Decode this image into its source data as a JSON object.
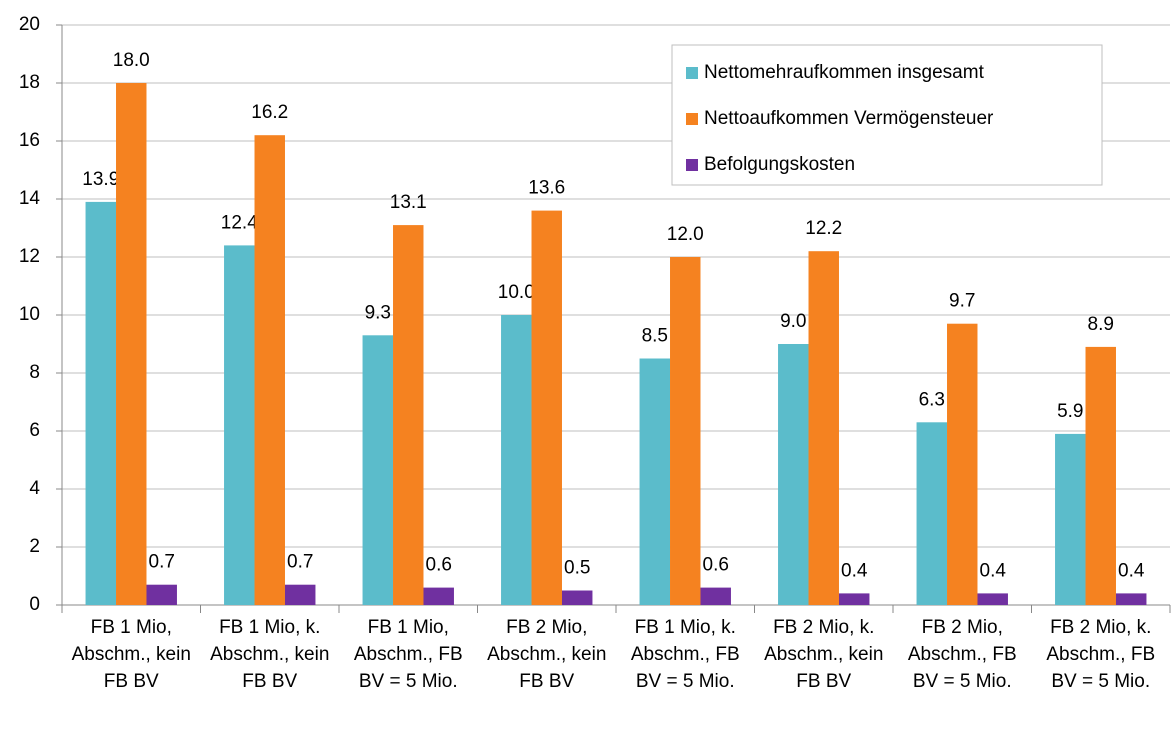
{
  "chart_data": {
    "type": "bar",
    "categories": [
      "FB 1 Mio, Abschm., kein FB BV",
      "FB 1 Mio, k. Abschm., kein FB BV",
      "FB 1 Mio, Abschm., FB BV = 5 Mio.",
      "FB 2 Mio, Abschm., kein FB BV",
      "FB 1 Mio, k. Abschm., FB BV = 5 Mio.",
      "FB 2 Mio, k. Abschm., kein FB BV",
      "FB 2 Mio, Abschm., FB BV = 5 Mio.",
      "FB 2 Mio, k. Abschm., FB BV = 5 Mio."
    ],
    "series": [
      {
        "name": "Nettomehraufkommen insgesamt",
        "color": "#5bbccb",
        "values": [
          13.9,
          12.4,
          9.3,
          10.0,
          8.5,
          9.0,
          6.3,
          5.9
        ],
        "value_labels": [
          "13.9",
          "12.4",
          "9.3",
          "10.0",
          "8.5",
          "9.0",
          "6.3",
          "5.9"
        ]
      },
      {
        "name": "Nettoaufkommen Vermögensteuer",
        "color": "#f58220",
        "values": [
          18.0,
          16.2,
          13.1,
          13.6,
          12.0,
          12.2,
          9.7,
          8.9
        ],
        "value_labels": [
          "18.0",
          "16.2",
          "13.1",
          "13.6",
          "12.0",
          "12.2",
          "9.7",
          "8.9"
        ]
      },
      {
        "name": "Befolgungskosten",
        "color": "#7030a0",
        "values": [
          0.7,
          0.7,
          0.6,
          0.5,
          0.6,
          0.4,
          0.4,
          0.4
        ],
        "value_labels": [
          "0.7",
          "0.7",
          "0.6",
          "0.5",
          "0.6",
          "0.4",
          "0.4",
          "0.4"
        ]
      }
    ],
    "ylim": [
      0,
      20
    ],
    "yticks": [
      0,
      2,
      4,
      6,
      8,
      10,
      12,
      14,
      16,
      18,
      20
    ],
    "grid": true,
    "legend": "upper right"
  }
}
